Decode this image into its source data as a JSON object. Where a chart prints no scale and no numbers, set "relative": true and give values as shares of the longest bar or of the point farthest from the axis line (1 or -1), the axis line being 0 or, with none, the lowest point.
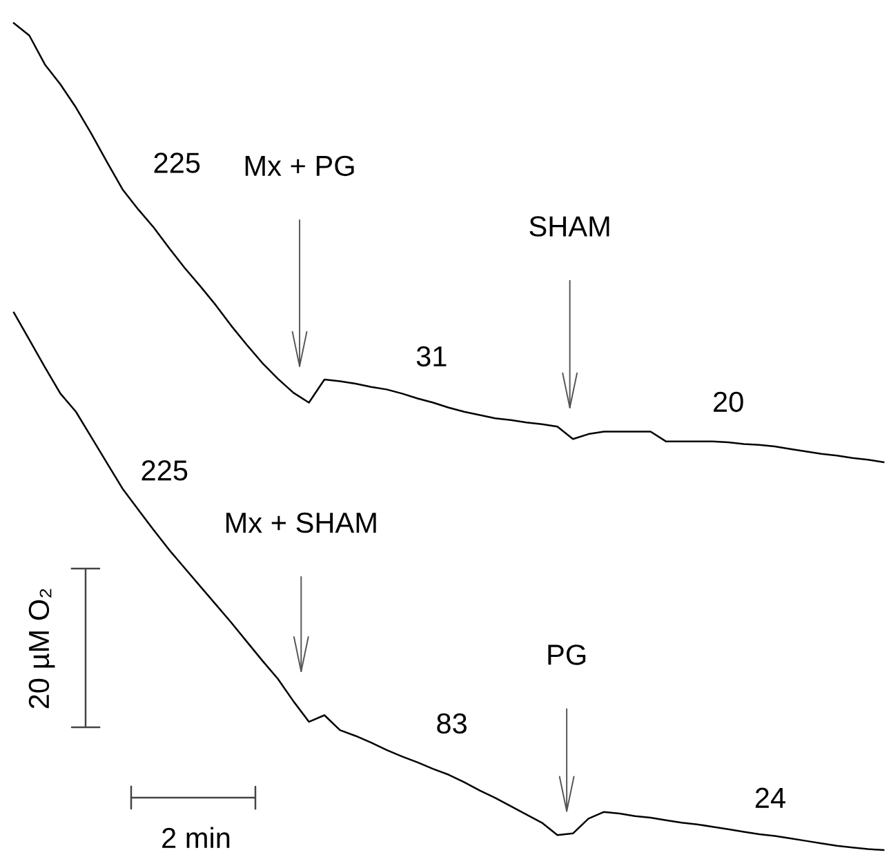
{
  "chart_data": {
    "type": "line",
    "relative": true,
    "legend": false,
    "marker": "none",
    "line_style": "solid",
    "categories": [
      null,
      null,
      null,
      null,
      null,
      null,
      null,
      null,
      null,
      null,
      null,
      null,
      null,
      null,
      null,
      null,
      null,
      null,
      null,
      null,
      null,
      null,
      null,
      null,
      null,
      null,
      null,
      null,
      null,
      null,
      null,
      null,
      null,
      null,
      null,
      null,
      null,
      null,
      null,
      null,
      null,
      null,
      null,
      null,
      null,
      null,
      null,
      null,
      null,
      null,
      null,
      null,
      null,
      null,
      null,
      null,
      null
    ],
    "series": [
      {
        "color": "#000000",
        "values": [
          1.0,
          0.985,
          0.95,
          0.926,
          0.898,
          0.866,
          0.832,
          0.799,
          0.775,
          0.753,
          0.728,
          0.704,
          0.682,
          0.659,
          0.634,
          0.611,
          0.589,
          0.57,
          0.553,
          0.541,
          0.569,
          0.567,
          0.564,
          0.56,
          0.557,
          0.552,
          0.546,
          0.541,
          0.535,
          0.53,
          0.526,
          0.522,
          0.52,
          0.517,
          0.515,
          0.512,
          0.497,
          0.503,
          0.506,
          0.506,
          0.506,
          0.506,
          0.494,
          0.494,
          0.494,
          0.494,
          0.493,
          0.491,
          0.49,
          0.488,
          0.485,
          0.482,
          0.479,
          0.477,
          0.474,
          0.472,
          0.469
        ]
      },
      {
        "color": "#000000",
        "values": [
          0.65,
          0.617,
          0.584,
          0.552,
          0.53,
          0.499,
          0.468,
          0.437,
          0.412,
          0.387,
          0.363,
          0.341,
          0.319,
          0.297,
          0.275,
          0.252,
          0.229,
          0.207,
          0.18,
          0.155,
          0.163,
          0.145,
          0.138,
          0.13,
          0.121,
          0.113,
          0.106,
          0.098,
          0.091,
          0.082,
          0.072,
          0.063,
          0.053,
          0.043,
          0.033,
          0.018,
          0.02,
          0.038,
          0.046,
          0.044,
          0.041,
          0.039,
          0.036,
          0.033,
          0.031,
          0.028,
          0.025,
          0.022,
          0.019,
          0.017,
          0.014,
          0.011,
          0.008,
          0.005,
          0.003,
          0.001,
          0.0
        ]
      }
    ],
    "annotations": [
      "225",
      "Mx + PG",
      "31",
      "SHAM",
      "20",
      "225",
      "Mx + SHAM",
      "83",
      "PG",
      "24",
      "20 µM O₂",
      "2 min"
    ]
  }
}
